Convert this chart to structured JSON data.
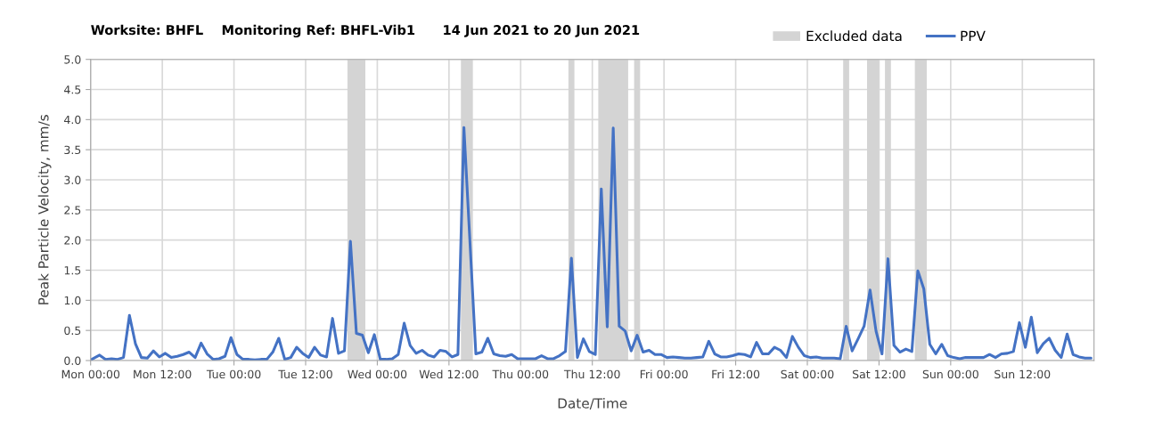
{
  "chart_data": {
    "type": "line",
    "title": "Worksite: BHFL    Monitoring Ref: BHFL-Vib1      14 Jun 2021 to 20 Jun 2021",
    "xlabel": "Date/Time",
    "ylabel": "Peak Particle Velocity, mm/s",
    "xlim": [
      "2021-06-14T00:00",
      "2021-06-21T00:00"
    ],
    "ylim": [
      0,
      5
    ],
    "xticks": [
      {
        "value": "2021-06-14T00:00",
        "label": "Mon 00:00"
      },
      {
        "value": "2021-06-14T12:00",
        "label": "Mon 12:00"
      },
      {
        "value": "2021-06-15T00:00",
        "label": "Tue 00:00"
      },
      {
        "value": "2021-06-15T12:00",
        "label": "Tue 12:00"
      },
      {
        "value": "2021-06-16T00:00",
        "label": "Wed 00:00"
      },
      {
        "value": "2021-06-16T12:00",
        "label": "Wed 12:00"
      },
      {
        "value": "2021-06-17T00:00",
        "label": "Thu 00:00"
      },
      {
        "value": "2021-06-17T12:00",
        "label": "Thu 12:00"
      },
      {
        "value": "2021-06-18T00:00",
        "label": "Fri 00:00"
      },
      {
        "value": "2021-06-18T12:00",
        "label": "Fri 12:00"
      },
      {
        "value": "2021-06-19T00:00",
        "label": "Sat 00:00"
      },
      {
        "value": "2021-06-19T12:00",
        "label": "Sat 12:00"
      },
      {
        "value": "2021-06-20T00:00",
        "label": "Sun 00:00"
      },
      {
        "value": "2021-06-20T12:00",
        "label": "Sun 12:00"
      }
    ],
    "yticks": [
      {
        "value": 0,
        "label": "0.0"
      },
      {
        "value": 0.5,
        "label": "0.5"
      },
      {
        "value": 1,
        "label": "1.0"
      },
      {
        "value": 1.5,
        "label": "1.5"
      },
      {
        "value": 2,
        "label": "2.0"
      },
      {
        "value": 2.5,
        "label": "2.5"
      },
      {
        "value": 3,
        "label": "3.0"
      },
      {
        "value": 3.5,
        "label": "3.5"
      },
      {
        "value": 4,
        "label": "4.0"
      },
      {
        "value": 4.5,
        "label": "4.5"
      },
      {
        "value": 5,
        "label": "5.0"
      }
    ],
    "grid": true,
    "legend": "top right",
    "marker": "none",
    "line_style": "solid",
    "bands": [
      {
        "axis": "x",
        "from": "2021-06-15T19:00",
        "to": "2021-06-15T22:00",
        "label": "Excluded data",
        "color": "#d4d4d4"
      },
      {
        "axis": "x",
        "from": "2021-06-16T14:00",
        "to": "2021-06-16T16:00",
        "color": "#d4d4d4"
      },
      {
        "axis": "x",
        "from": "2021-06-17T08:00",
        "to": "2021-06-17T09:00",
        "color": "#d4d4d4"
      },
      {
        "axis": "x",
        "from": "2021-06-17T13:00",
        "to": "2021-06-17T18:00",
        "color": "#d4d4d4"
      },
      {
        "axis": "x",
        "from": "2021-06-17T19:00",
        "to": "2021-06-17T20:00",
        "color": "#d4d4d4"
      },
      {
        "axis": "x",
        "from": "2021-06-19T06:00",
        "to": "2021-06-19T07:00",
        "color": "#d4d4d4"
      },
      {
        "axis": "x",
        "from": "2021-06-19T10:00",
        "to": "2021-06-19T12:00",
        "color": "#d4d4d4"
      },
      {
        "axis": "x",
        "from": "2021-06-19T13:00",
        "to": "2021-06-19T14:00",
        "color": "#d4d4d4"
      },
      {
        "axis": "x",
        "from": "2021-06-19T18:00",
        "to": "2021-06-19T20:00",
        "color": "#d4d4d4"
      }
    ],
    "series": [
      {
        "name": "PPV",
        "color": "#4472c4",
        "x": [
          "2021-06-14T00:00",
          "2021-06-14T01:30",
          "2021-06-14T02:30",
          "2021-06-14T03:30",
          "2021-06-14T04:30",
          "2021-06-14T05:30",
          "2021-06-14T06:30",
          "2021-06-14T07:30",
          "2021-06-14T08:30",
          "2021-06-14T09:30",
          "2021-06-14T10:30",
          "2021-06-14T11:30",
          "2021-06-14T12:30",
          "2021-06-14T13:30",
          "2021-06-14T14:30",
          "2021-06-14T15:30",
          "2021-06-14T16:30",
          "2021-06-14T17:30",
          "2021-06-14T18:30",
          "2021-06-14T19:30",
          "2021-06-14T20:30",
          "2021-06-14T21:30",
          "2021-06-14T22:30",
          "2021-06-14T23:30",
          "2021-06-15T00:30",
          "2021-06-15T01:30",
          "2021-06-15T02:30",
          "2021-06-15T03:30",
          "2021-06-15T04:30",
          "2021-06-15T05:30",
          "2021-06-15T06:30",
          "2021-06-15T07:30",
          "2021-06-15T08:30",
          "2021-06-15T09:30",
          "2021-06-15T10:30",
          "2021-06-15T11:30",
          "2021-06-15T12:30",
          "2021-06-15T13:30",
          "2021-06-15T14:30",
          "2021-06-15T15:30",
          "2021-06-15T16:30",
          "2021-06-15T17:30",
          "2021-06-15T18:30",
          "2021-06-15T19:30",
          "2021-06-15T20:30",
          "2021-06-15T21:30",
          "2021-06-15T22:30",
          "2021-06-15T23:30",
          "2021-06-16T00:30",
          "2021-06-16T01:30",
          "2021-06-16T02:30",
          "2021-06-16T03:30",
          "2021-06-16T04:30",
          "2021-06-16T05:30",
          "2021-06-16T06:30",
          "2021-06-16T07:30",
          "2021-06-16T08:30",
          "2021-06-16T09:30",
          "2021-06-16T10:30",
          "2021-06-16T11:30",
          "2021-06-16T12:30",
          "2021-06-16T13:30",
          "2021-06-16T14:30",
          "2021-06-16T16:30",
          "2021-06-16T17:30",
          "2021-06-16T18:30",
          "2021-06-16T19:30",
          "2021-06-16T20:30",
          "2021-06-16T21:30",
          "2021-06-16T22:30",
          "2021-06-16T23:30",
          "2021-06-17T00:30",
          "2021-06-17T01:30",
          "2021-06-17T02:30",
          "2021-06-17T03:30",
          "2021-06-17T04:30",
          "2021-06-17T05:30",
          "2021-06-17T06:30",
          "2021-06-17T07:30",
          "2021-06-17T08:30",
          "2021-06-17T09:30",
          "2021-06-17T10:30",
          "2021-06-17T11:30",
          "2021-06-17T12:30",
          "2021-06-17T13:30",
          "2021-06-17T14:30",
          "2021-06-17T15:30",
          "2021-06-17T16:30",
          "2021-06-17T17:30",
          "2021-06-17T18:30",
          "2021-06-17T19:30",
          "2021-06-17T20:30",
          "2021-06-17T21:30",
          "2021-06-17T22:30",
          "2021-06-17T23:30",
          "2021-06-18T00:30",
          "2021-06-18T01:30",
          "2021-06-18T02:30",
          "2021-06-18T03:30",
          "2021-06-18T04:30",
          "2021-06-18T05:30",
          "2021-06-18T06:30",
          "2021-06-18T07:30",
          "2021-06-18T08:30",
          "2021-06-18T09:30",
          "2021-06-18T10:30",
          "2021-06-18T11:30",
          "2021-06-18T12:30",
          "2021-06-18T13:30",
          "2021-06-18T14:30",
          "2021-06-18T15:30",
          "2021-06-18T16:30",
          "2021-06-18T17:30",
          "2021-06-18T18:30",
          "2021-06-18T19:30",
          "2021-06-18T20:30",
          "2021-06-18T21:30",
          "2021-06-18T22:30",
          "2021-06-18T23:30",
          "2021-06-19T00:30",
          "2021-06-19T01:30",
          "2021-06-19T02:30",
          "2021-06-19T03:30",
          "2021-06-19T04:30",
          "2021-06-19T05:30",
          "2021-06-19T06:30",
          "2021-06-19T07:30",
          "2021-06-19T08:30",
          "2021-06-19T09:30",
          "2021-06-19T10:30",
          "2021-06-19T11:30",
          "2021-06-19T12:30",
          "2021-06-19T13:30",
          "2021-06-19T14:30",
          "2021-06-19T15:30",
          "2021-06-19T16:30",
          "2021-06-19T17:30",
          "2021-06-19T18:30",
          "2021-06-19T19:30",
          "2021-06-19T20:30",
          "2021-06-19T21:30",
          "2021-06-19T22:30",
          "2021-06-19T23:30",
          "2021-06-20T00:30",
          "2021-06-20T01:30",
          "2021-06-20T02:30",
          "2021-06-20T03:30",
          "2021-06-20T04:30",
          "2021-06-20T05:30",
          "2021-06-20T06:30",
          "2021-06-20T07:30",
          "2021-06-20T08:30",
          "2021-06-20T09:30",
          "2021-06-20T10:30",
          "2021-06-20T11:30",
          "2021-06-20T12:30",
          "2021-06-20T13:30",
          "2021-06-20T14:30",
          "2021-06-20T15:30",
          "2021-06-20T16:30",
          "2021-06-20T17:30",
          "2021-06-20T18:30",
          "2021-06-20T19:30",
          "2021-06-20T20:30",
          "2021-06-20T21:30",
          "2021-06-20T22:30",
          "2021-06-20T23:30"
        ],
        "values": [
          0.01,
          0.09,
          0.02,
          0.03,
          0.02,
          0.05,
          0.75,
          0.28,
          0.05,
          0.04,
          0.16,
          0.06,
          0.12,
          0.05,
          0.07,
          0.1,
          0.14,
          0.05,
          0.29,
          0.11,
          0.02,
          0.03,
          0.07,
          0.38,
          0.1,
          0.02,
          0.02,
          0.01,
          0.02,
          0.02,
          0.14,
          0.37,
          0.02,
          0.05,
          0.22,
          0.12,
          0.05,
          0.22,
          0.09,
          0.06,
          0.7,
          0.12,
          0.16,
          1.98,
          0.45,
          0.42,
          0.13,
          0.43,
          0.02,
          0.02,
          0.03,
          0.1,
          0.62,
          0.25,
          0.12,
          0.17,
          0.09,
          0.06,
          0.17,
          0.15,
          0.06,
          0.1,
          3.87,
          0.11,
          0.14,
          0.37,
          0.11,
          0.08,
          0.07,
          0.1,
          0.03,
          0.03,
          0.03,
          0.03,
          0.08,
          0.03,
          0.03,
          0.08,
          0.15,
          1.7,
          0.05,
          0.36,
          0.15,
          0.1,
          2.85,
          0.56,
          3.86,
          0.57,
          0.49,
          0.16,
          0.42,
          0.14,
          0.17,
          0.1,
          0.1,
          0.05,
          0.06,
          0.05,
          0.04,
          0.04,
          0.05,
          0.06,
          0.32,
          0.11,
          0.06,
          0.06,
          0.08,
          0.11,
          0.1,
          0.06,
          0.3,
          0.11,
          0.11,
          0.22,
          0.17,
          0.05,
          0.4,
          0.22,
          0.08,
          0.05,
          0.06,
          0.04,
          0.04,
          0.04,
          0.03,
          0.57,
          0.16,
          0.36,
          0.57,
          1.17,
          0.49,
          0.11,
          1.69,
          0.25,
          0.14,
          0.19,
          0.15,
          1.49,
          1.19,
          0.27,
          0.11,
          0.27,
          0.08,
          0.05,
          0.03,
          0.05,
          0.05,
          0.05,
          0.05,
          0.1,
          0.05,
          0.11,
          0.12,
          0.15,
          0.63,
          0.22,
          0.72,
          0.13,
          0.28,
          0.37,
          0.17,
          0.05,
          0.44,
          0.1,
          0.06,
          0.04,
          0.04
        ]
      }
    ]
  }
}
